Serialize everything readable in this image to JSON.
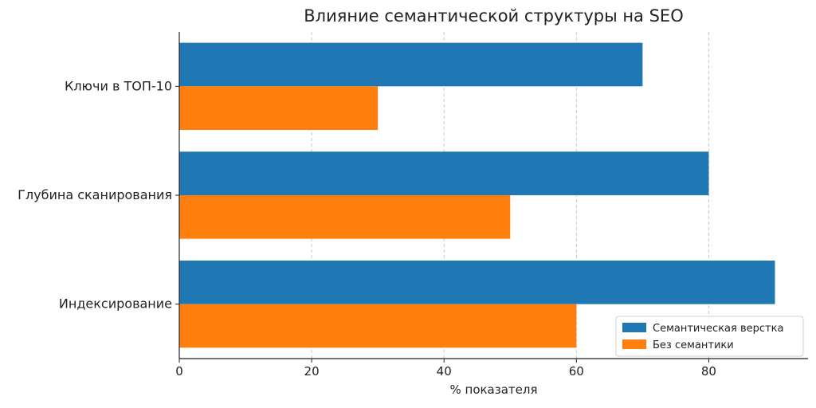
{
  "chart_data": {
    "type": "bar",
    "orientation": "horizontal",
    "title": "Влияние семантической структуры на SEO",
    "xlabel": "% показателя",
    "ylabel": "",
    "xlim": [
      0,
      95
    ],
    "x_ticks": [
      0,
      20,
      40,
      60,
      80
    ],
    "categories": [
      "Индексирование",
      "Глубина сканирования",
      "Ключи в ТОП-10"
    ],
    "series": [
      {
        "name": "Семантическая верстка",
        "color": "#1f77b4",
        "values": [
          90,
          80,
          70
        ]
      },
      {
        "name": "Без семантики",
        "color": "#ff7f0e",
        "values": [
          60,
          50,
          30
        ]
      }
    ],
    "grid": true,
    "legend_position": "bottom-right"
  }
}
